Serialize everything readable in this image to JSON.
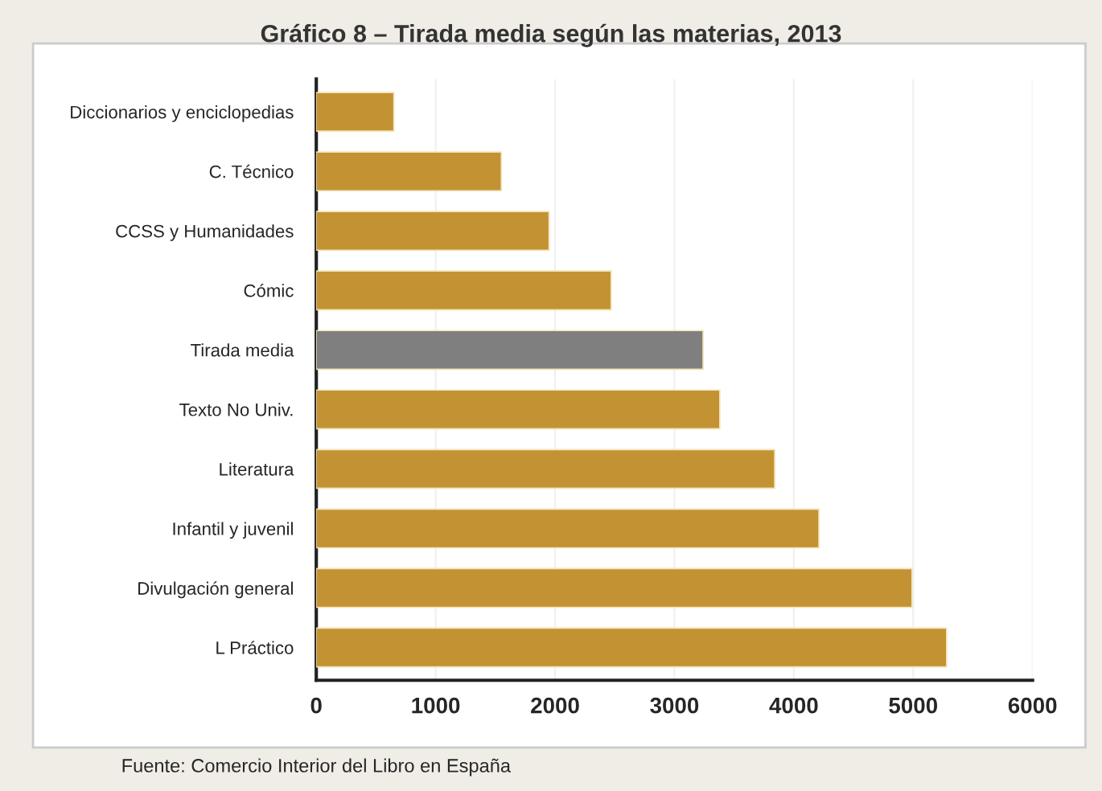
{
  "chart_data": {
    "type": "bar",
    "orientation": "horizontal",
    "title": "Gráfico 8 – Tirada media según las materias, 2013",
    "categories": [
      "Diccionarios y enciclopedias",
      "C. Técnico",
      "CCSS y Humanidades",
      "Cómic",
      "Tirada media",
      "Texto No Univ.",
      "Literatura",
      "Infantil y juvenil",
      "Divulgación general",
      "L Práctico"
    ],
    "values": [
      650,
      1550,
      1950,
      2470,
      3240,
      3380,
      3840,
      4210,
      4990,
      5280
    ],
    "colors": [
      "#c39232",
      "#c39232",
      "#c39232",
      "#c39232",
      "#7f7f7f",
      "#c39232",
      "#c39232",
      "#c39232",
      "#c39232",
      "#c39232"
    ],
    "xlim": [
      0,
      6000
    ],
    "xticks": [
      0,
      1000,
      2000,
      3000,
      4000,
      5000,
      6000
    ],
    "grid": "x",
    "legend": false,
    "annotations": [
      "Fuente: Comercio Interior del Libro en España"
    ]
  }
}
